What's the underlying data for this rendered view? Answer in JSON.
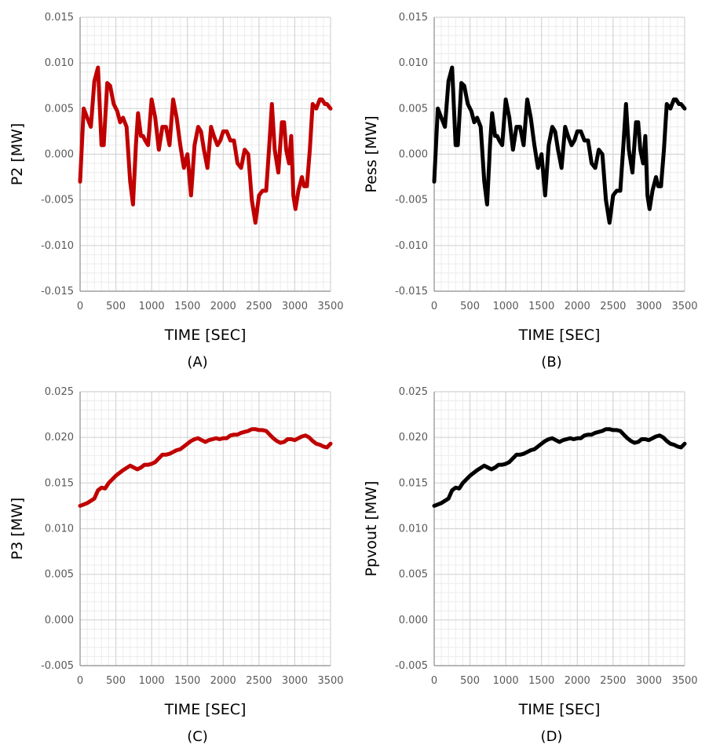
{
  "chart_data": [
    {
      "type": "line",
      "panel_label": "(A)",
      "xlabel": "TIME [SEC]",
      "ylabel": "P2 [MW]",
      "xlim": [
        0,
        3500
      ],
      "ylim": [
        -0.015,
        0.015
      ],
      "xticks": [
        "0",
        "500",
        "1000",
        "1500",
        "2000",
        "2500",
        "3000",
        "3500"
      ],
      "yticks": [
        "0.015",
        "0.010",
        "0.005",
        "0.000",
        "-0.005",
        "-0.010",
        "-0.015"
      ],
      "grid": true,
      "series": [
        {
          "color": "#c00000",
          "x": [
            0,
            50,
            100,
            150,
            200,
            250,
            300,
            330,
            380,
            420,
            470,
            520,
            560,
            600,
            650,
            700,
            740,
            780,
            810,
            850,
            880,
            910,
            950,
            1000,
            1050,
            1100,
            1150,
            1200,
            1250,
            1300,
            1350,
            1400,
            1450,
            1500,
            1550,
            1600,
            1650,
            1690,
            1730,
            1780,
            1830,
            1870,
            1920,
            1960,
            2000,
            2050,
            2100,
            2150,
            2200,
            2250,
            2300,
            2350,
            2400,
            2450,
            2500,
            2550,
            2600,
            2640,
            2680,
            2720,
            2770,
            2820,
            2850,
            2880,
            2920,
            2950,
            2980,
            3010,
            3050,
            3100,
            3130,
            3170,
            3210,
            3250,
            3300,
            3350,
            3380,
            3420,
            3450,
            3500
          ],
          "y": [
            -0.003,
            0.005,
            0.004,
            0.003,
            0.008,
            0.0095,
            0.001,
            0.001,
            0.0078,
            0.0075,
            0.0055,
            0.0047,
            0.0035,
            0.004,
            0.003,
            -0.003,
            -0.0055,
            0.001,
            0.0045,
            0.002,
            0.002,
            0.0015,
            0.001,
            0.006,
            0.004,
            0.0005,
            0.003,
            0.003,
            0.001,
            0.006,
            0.004,
            0.001,
            -0.0015,
            0.0,
            -0.0045,
            0.001,
            0.003,
            0.0025,
            0.0005,
            -0.0015,
            0.003,
            0.002,
            0.001,
            0.0015,
            0.0025,
            0.0025,
            0.0015,
            0.0015,
            -0.001,
            -0.0015,
            0.0005,
            0.0,
            -0.005,
            -0.0075,
            -0.0045,
            -0.004,
            -0.004,
            0.0005,
            0.0055,
            0.0005,
            -0.002,
            0.0035,
            0.0035,
            0.0005,
            -0.001,
            0.002,
            -0.0045,
            -0.006,
            -0.004,
            -0.0025,
            -0.0035,
            -0.0035,
            0.0005,
            0.0055,
            0.005,
            0.006,
            0.006,
            0.0055,
            0.0055,
            0.005
          ]
        }
      ]
    },
    {
      "type": "line",
      "panel_label": "(B)",
      "xlabel": "TIME [SEC]",
      "ylabel": "Pess [MW]",
      "xlim": [
        0,
        3500
      ],
      "ylim": [
        -0.015,
        0.015
      ],
      "xticks": [
        "0",
        "500",
        "1000",
        "1500",
        "2000",
        "2500",
        "3000",
        "3500"
      ],
      "yticks": [
        "0.015",
        "0.010",
        "0.005",
        "0.000",
        "-0.005",
        "-0.010",
        "-0.015"
      ],
      "grid": true,
      "series": [
        {
          "color": "#000000",
          "x": [
            0,
            50,
            100,
            150,
            200,
            250,
            300,
            330,
            380,
            420,
            470,
            520,
            560,
            600,
            650,
            700,
            740,
            780,
            810,
            850,
            880,
            910,
            950,
            1000,
            1050,
            1100,
            1150,
            1200,
            1250,
            1300,
            1350,
            1400,
            1450,
            1500,
            1550,
            1600,
            1650,
            1690,
            1730,
            1780,
            1830,
            1870,
            1920,
            1960,
            2000,
            2050,
            2100,
            2150,
            2200,
            2250,
            2300,
            2350,
            2400,
            2450,
            2500,
            2550,
            2600,
            2640,
            2680,
            2720,
            2770,
            2820,
            2850,
            2880,
            2920,
            2950,
            2980,
            3010,
            3050,
            3100,
            3130,
            3170,
            3210,
            3250,
            3300,
            3350,
            3380,
            3420,
            3450,
            3500
          ],
          "y": [
            -0.003,
            0.005,
            0.004,
            0.003,
            0.008,
            0.0095,
            0.001,
            0.001,
            0.0078,
            0.0075,
            0.0055,
            0.0047,
            0.0035,
            0.004,
            0.003,
            -0.003,
            -0.0055,
            0.001,
            0.0045,
            0.002,
            0.002,
            0.0015,
            0.001,
            0.006,
            0.004,
            0.0005,
            0.003,
            0.003,
            0.001,
            0.006,
            0.004,
            0.001,
            -0.0015,
            0.0,
            -0.0045,
            0.001,
            0.003,
            0.0025,
            0.0005,
            -0.0015,
            0.003,
            0.002,
            0.001,
            0.0015,
            0.0025,
            0.0025,
            0.0015,
            0.0015,
            -0.001,
            -0.0015,
            0.0005,
            0.0,
            -0.005,
            -0.0075,
            -0.0045,
            -0.004,
            -0.004,
            0.0005,
            0.0055,
            0.0005,
            -0.002,
            0.0035,
            0.0035,
            0.0005,
            -0.001,
            0.002,
            -0.0045,
            -0.006,
            -0.004,
            -0.0025,
            -0.0035,
            -0.0035,
            0.0005,
            0.0055,
            0.005,
            0.006,
            0.006,
            0.0055,
            0.0055,
            0.005
          ]
        }
      ]
    },
    {
      "type": "line",
      "panel_label": "(C)",
      "xlabel": "TIME [SEC]",
      "ylabel": "P3 [MW]",
      "xlim": [
        0,
        3500
      ],
      "ylim": [
        -0.005,
        0.025
      ],
      "xticks": [
        "0",
        "500",
        "1000",
        "1500",
        "2000",
        "2500",
        "3000",
        "3500"
      ],
      "yticks": [
        "0.025",
        "0.020",
        "0.015",
        "0.010",
        "0.005",
        "0.000",
        "-0.005"
      ],
      "grid": true,
      "series": [
        {
          "color": "#c00000",
          "x": [
            0,
            100,
            200,
            250,
            300,
            350,
            400,
            500,
            600,
            700,
            750,
            800,
            850,
            900,
            950,
            1000,
            1050,
            1100,
            1150,
            1200,
            1250,
            1300,
            1350,
            1400,
            1500,
            1550,
            1600,
            1650,
            1700,
            1750,
            1800,
            1850,
            1900,
            1950,
            2000,
            2050,
            2100,
            2150,
            2200,
            2250,
            2300,
            2350,
            2400,
            2450,
            2500,
            2550,
            2600,
            2650,
            2700,
            2750,
            2800,
            2850,
            2900,
            2950,
            3000,
            3050,
            3100,
            3150,
            3200,
            3250,
            3300,
            3350,
            3400,
            3450,
            3500
          ],
          "y": [
            0.0125,
            0.0128,
            0.0133,
            0.0142,
            0.0145,
            0.0144,
            0.015,
            0.0158,
            0.0164,
            0.0169,
            0.0167,
            0.0165,
            0.0167,
            0.017,
            0.017,
            0.0171,
            0.0173,
            0.0177,
            0.0181,
            0.0181,
            0.0182,
            0.0184,
            0.0186,
            0.0187,
            0.0193,
            0.0196,
            0.0198,
            0.0199,
            0.0197,
            0.0195,
            0.0197,
            0.0198,
            0.0199,
            0.0198,
            0.0199,
            0.0199,
            0.0202,
            0.0203,
            0.0203,
            0.0205,
            0.0206,
            0.0207,
            0.0209,
            0.0209,
            0.0208,
            0.0208,
            0.0207,
            0.0203,
            0.0199,
            0.0196,
            0.0194,
            0.0195,
            0.0198,
            0.0198,
            0.0197,
            0.0199,
            0.0201,
            0.0202,
            0.02,
            0.0196,
            0.0193,
            0.0192,
            0.019,
            0.0189,
            0.0193
          ]
        }
      ]
    },
    {
      "type": "line",
      "panel_label": "(D)",
      "xlabel": "TIME [SEC]",
      "ylabel": "Ppvout [MW]",
      "xlim": [
        0,
        3500
      ],
      "ylim": [
        -0.005,
        0.025
      ],
      "xticks": [
        "0",
        "500",
        "1000",
        "1500",
        "2000",
        "2500",
        "3000",
        "3500"
      ],
      "yticks": [
        "0.025",
        "0.020",
        "0.015",
        "0.010",
        "0.005",
        "0.000",
        "-0.005"
      ],
      "grid": true,
      "series": [
        {
          "color": "#000000",
          "x": [
            0,
            100,
            200,
            250,
            300,
            350,
            400,
            500,
            600,
            700,
            750,
            800,
            850,
            900,
            950,
            1000,
            1050,
            1100,
            1150,
            1200,
            1250,
            1300,
            1350,
            1400,
            1500,
            1550,
            1600,
            1650,
            1700,
            1750,
            1800,
            1850,
            1900,
            1950,
            2000,
            2050,
            2100,
            2150,
            2200,
            2250,
            2300,
            2350,
            2400,
            2450,
            2500,
            2550,
            2600,
            2650,
            2700,
            2750,
            2800,
            2850,
            2900,
            2950,
            3000,
            3050,
            3100,
            3150,
            3200,
            3250,
            3300,
            3350,
            3400,
            3450,
            3500
          ],
          "y": [
            0.0125,
            0.0128,
            0.0133,
            0.0142,
            0.0145,
            0.0144,
            0.015,
            0.0158,
            0.0164,
            0.0169,
            0.0167,
            0.0165,
            0.0167,
            0.017,
            0.017,
            0.0171,
            0.0173,
            0.0177,
            0.0181,
            0.0181,
            0.0182,
            0.0184,
            0.0186,
            0.0187,
            0.0193,
            0.0196,
            0.0198,
            0.0199,
            0.0197,
            0.0195,
            0.0197,
            0.0198,
            0.0199,
            0.0198,
            0.0199,
            0.0199,
            0.0202,
            0.0203,
            0.0203,
            0.0205,
            0.0206,
            0.0207,
            0.0209,
            0.0209,
            0.0208,
            0.0208,
            0.0207,
            0.0203,
            0.0199,
            0.0196,
            0.0194,
            0.0195,
            0.0198,
            0.0198,
            0.0197,
            0.0199,
            0.0201,
            0.0202,
            0.02,
            0.0196,
            0.0193,
            0.0192,
            0.019,
            0.0189,
            0.0193
          ]
        }
      ]
    }
  ]
}
